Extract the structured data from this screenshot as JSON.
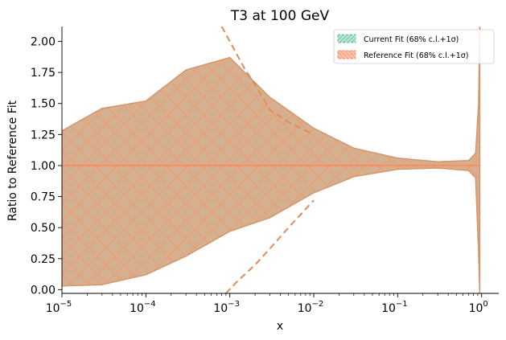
{
  "chart_data": {
    "type": "area",
    "title": "T3 at 100 GeV",
    "xlabel": "x",
    "ylabel": "Ratio to Reference Fit",
    "xscale": "log",
    "xlim": [
      1e-05,
      1.6
    ],
    "ylim": [
      -0.03,
      2.12
    ],
    "x_ticks": [
      {
        "value": 1e-05,
        "base": "10",
        "exp": "−5"
      },
      {
        "value": 0.0001,
        "base": "10",
        "exp": "−4"
      },
      {
        "value": 0.001,
        "base": "10",
        "exp": "−3"
      },
      {
        "value": 0.01,
        "base": "10",
        "exp": "−2"
      },
      {
        "value": 0.1,
        "base": "10",
        "exp": "−1"
      },
      {
        "value": 1,
        "base": "10",
        "exp": "0"
      }
    ],
    "y_ticks": [
      "0.00",
      "0.25",
      "0.50",
      "0.75",
      "1.00",
      "1.25",
      "1.50",
      "1.75",
      "2.00"
    ],
    "legend_position": "top-right",
    "colors": {
      "current": "#66c2a5",
      "reference": "#fc8d62",
      "band_fill": "#d4b08f",
      "band_edge": "#d4956a"
    },
    "series": [
      {
        "name": "Current Fit (68% c.l.+1σ)",
        "x": [
          1e-05,
          3e-05,
          0.0001,
          0.0003,
          0.001,
          0.003,
          0.01,
          0.03,
          0.1,
          0.3,
          0.7,
          0.85,
          0.92,
          0.95
        ],
        "upper": [
          1.28,
          1.46,
          1.52,
          1.77,
          1.87,
          1.55,
          1.3,
          1.14,
          1.06,
          1.03,
          1.04,
          1.1,
          1.5,
          2.12
        ],
        "lower": [
          0.03,
          0.04,
          0.12,
          0.27,
          0.47,
          0.58,
          0.78,
          0.91,
          0.97,
          0.98,
          0.96,
          0.9,
          0.3,
          -0.03
        ]
      },
      {
        "name": "Reference Fit (68% c.l.+1σ)",
        "x": [
          1e-05,
          3e-05,
          0.0001,
          0.0003,
          0.001,
          0.003,
          0.01,
          0.03,
          0.1,
          0.3,
          0.7,
          0.85,
          0.92,
          0.95
        ],
        "central": [
          1,
          1,
          1,
          1,
          1,
          1,
          1,
          1,
          1,
          1,
          1,
          1,
          1,
          1
        ],
        "upper": [
          1.28,
          1.46,
          1.52,
          1.77,
          1.87,
          1.55,
          1.3,
          1.14,
          1.06,
          1.03,
          1.04,
          1.1,
          1.5,
          2.12
        ],
        "lower": [
          0.03,
          0.04,
          0.12,
          0.27,
          0.47,
          0.58,
          0.78,
          0.91,
          0.97,
          0.98,
          0.96,
          0.9,
          0.3,
          -0.03
        ],
        "dashed_upper": {
          "x": [
            0.0008,
            0.001,
            0.0015,
            0.002,
            0.003,
            0.005,
            0.01
          ],
          "y": [
            2.12,
            2.0,
            1.78,
            1.65,
            1.45,
            1.35,
            1.25
          ]
        },
        "dashed_lower": {
          "x": [
            0.0009,
            0.0012,
            0.002,
            0.003,
            0.005,
            0.01
          ],
          "y": [
            -0.03,
            0.06,
            0.2,
            0.33,
            0.5,
            0.72
          ]
        }
      }
    ]
  }
}
